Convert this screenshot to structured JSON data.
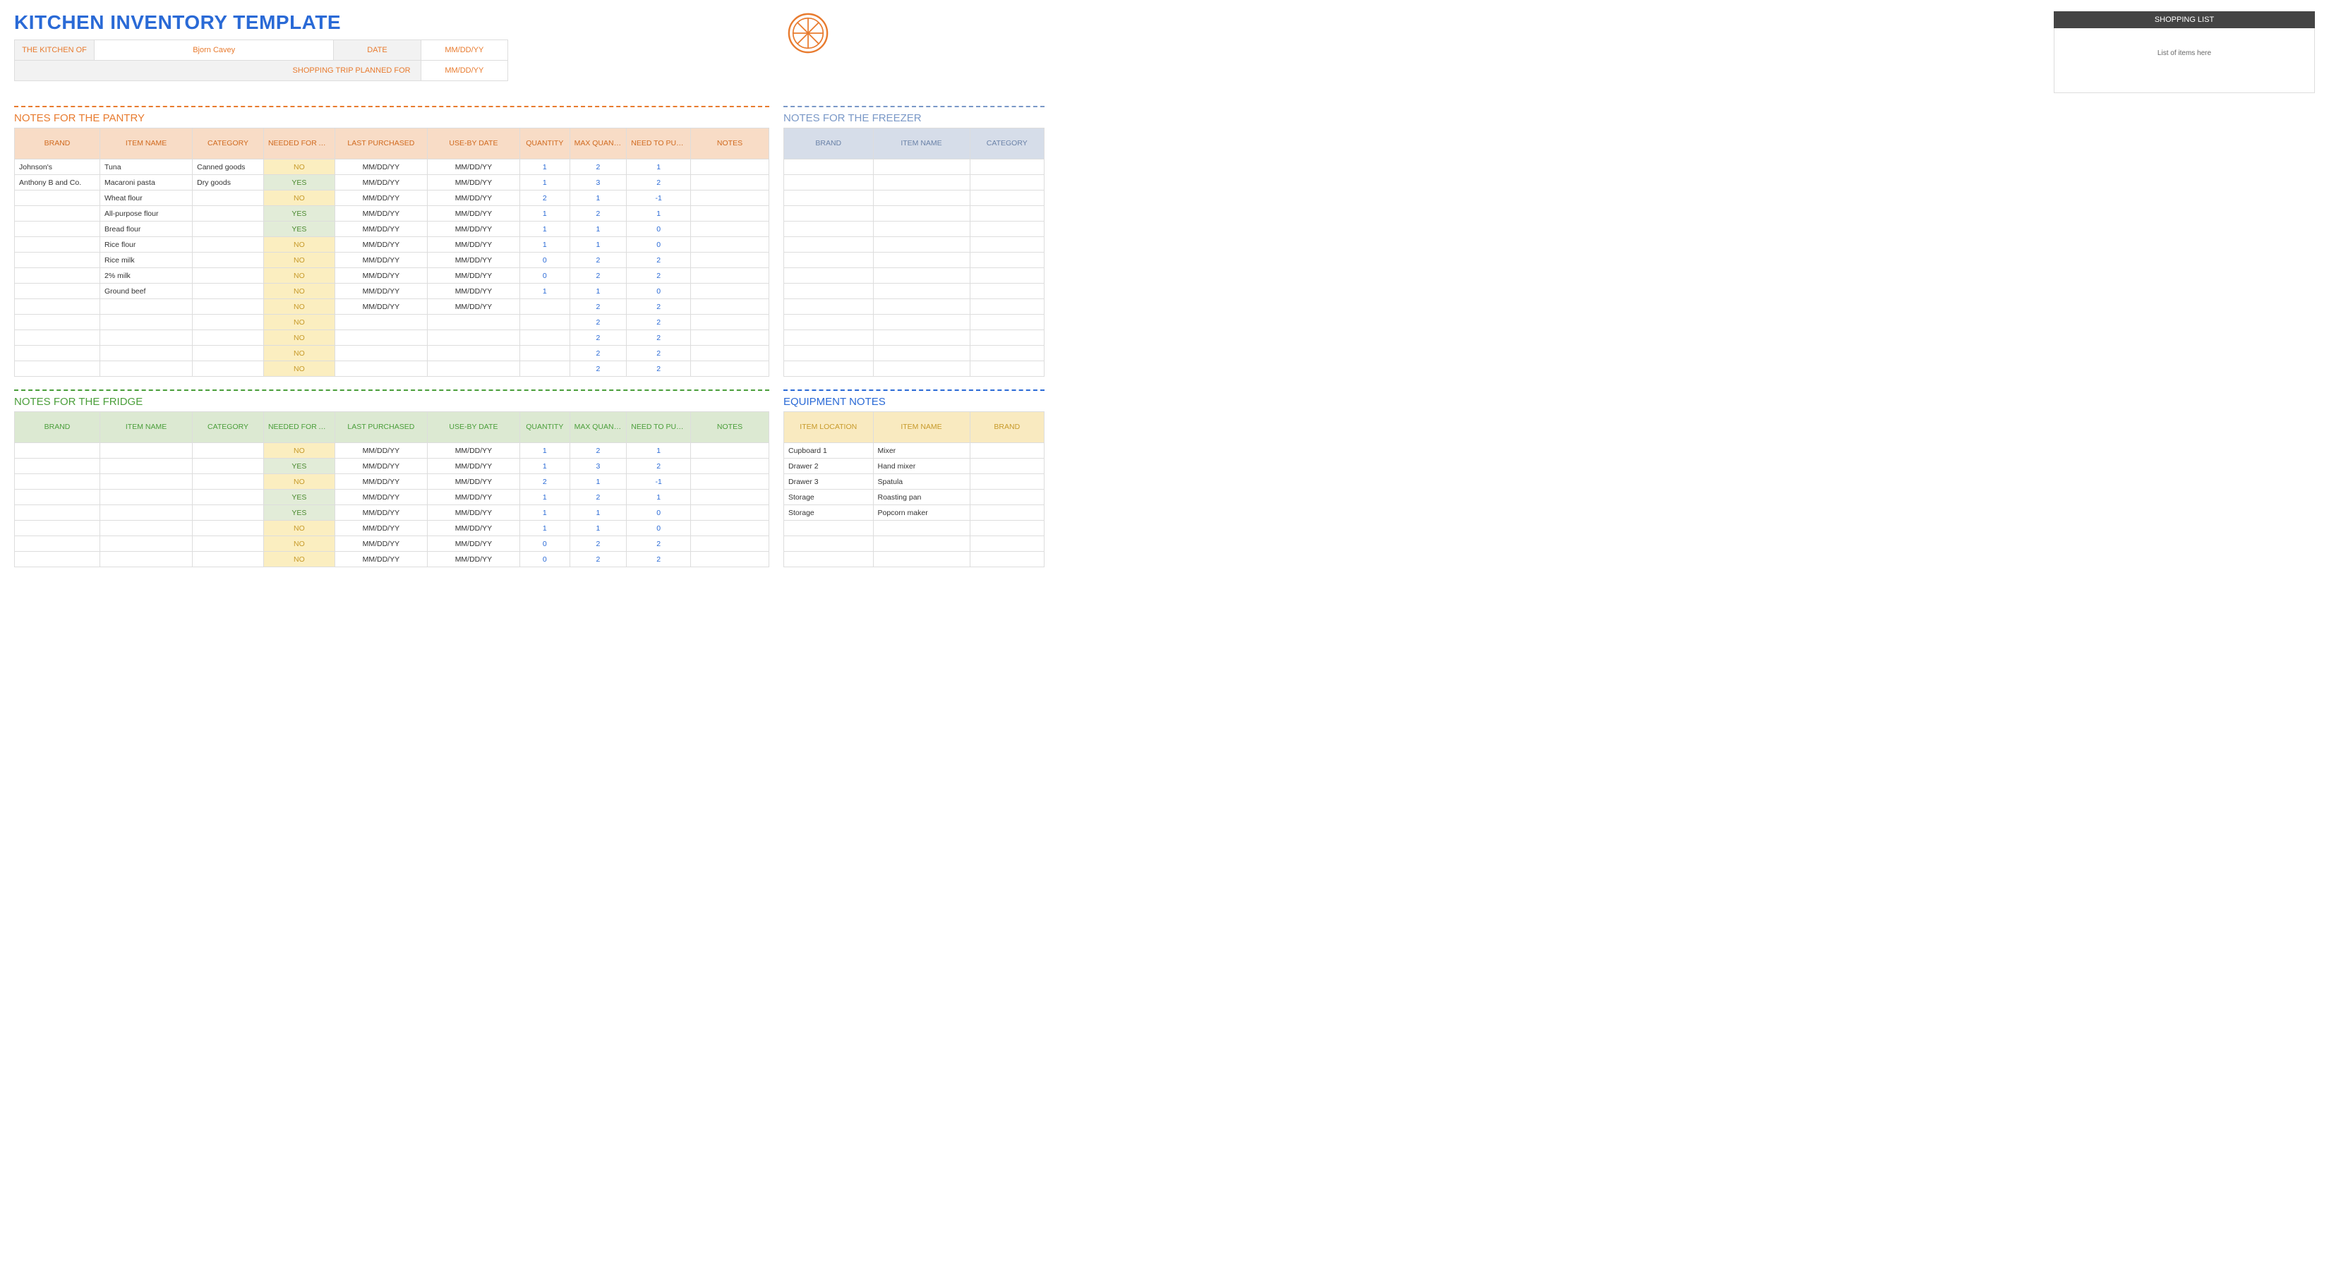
{
  "title": "KITCHEN INVENTORY TEMPLATE",
  "meta": {
    "kitchen_of_label": "THE KITCHEN OF",
    "kitchen_of_value": "Bjorn Cavey",
    "date_label": "DATE",
    "date_value": "MM/DD/YY",
    "trip_label": "SHOPPING TRIP PLANNED FOR",
    "trip_value": "MM/DD/YY"
  },
  "shopping": {
    "header": "SHOPPING LIST",
    "body": "List of items here"
  },
  "flags": {
    "yes": "YES",
    "no": "NO"
  },
  "columns": {
    "brand": "BRAND",
    "item": "ITEM NAME",
    "category": "CATEGORY",
    "needed": "NEEDED FOR A SPECIFIC RECIPE?",
    "last": "LAST PURCHASED",
    "useby": "USE-BY DATE",
    "qty": "QUANTITY",
    "maxqty": "MAX QUANTITY",
    "need": "NEED TO PURCHASE",
    "notes": "NOTES",
    "loc": "ITEM LOCATION"
  },
  "pantry": {
    "title": "NOTES FOR THE PANTRY",
    "rows": [
      {
        "brand": "Johnson's",
        "item": "Tuna",
        "cat": "Canned goods",
        "needed": "NO",
        "last": "MM/DD/YY",
        "use": "MM/DD/YY",
        "qty": "1",
        "max": "2",
        "need": "1"
      },
      {
        "brand": "Anthony B and Co.",
        "item": "Macaroni pasta",
        "cat": "Dry goods",
        "needed": "YES",
        "last": "MM/DD/YY",
        "use": "MM/DD/YY",
        "qty": "1",
        "max": "3",
        "need": "2"
      },
      {
        "brand": "",
        "item": "Wheat flour",
        "cat": "",
        "needed": "NO",
        "last": "MM/DD/YY",
        "use": "MM/DD/YY",
        "qty": "2",
        "max": "1",
        "need": "-1"
      },
      {
        "brand": "",
        "item": "All-purpose flour",
        "cat": "",
        "needed": "YES",
        "last": "MM/DD/YY",
        "use": "MM/DD/YY",
        "qty": "1",
        "max": "2",
        "need": "1"
      },
      {
        "brand": "",
        "item": "Bread flour",
        "cat": "",
        "needed": "YES",
        "last": "MM/DD/YY",
        "use": "MM/DD/YY",
        "qty": "1",
        "max": "1",
        "need": "0"
      },
      {
        "brand": "",
        "item": "Rice flour",
        "cat": "",
        "needed": "NO",
        "last": "MM/DD/YY",
        "use": "MM/DD/YY",
        "qty": "1",
        "max": "1",
        "need": "0"
      },
      {
        "brand": "",
        "item": "Rice milk",
        "cat": "",
        "needed": "NO",
        "last": "MM/DD/YY",
        "use": "MM/DD/YY",
        "qty": "0",
        "max": "2",
        "need": "2"
      },
      {
        "brand": "",
        "item": "2% milk",
        "cat": "",
        "needed": "NO",
        "last": "MM/DD/YY",
        "use": "MM/DD/YY",
        "qty": "0",
        "max": "2",
        "need": "2"
      },
      {
        "brand": "",
        "item": "Ground beef",
        "cat": "",
        "needed": "NO",
        "last": "MM/DD/YY",
        "use": "MM/DD/YY",
        "qty": "1",
        "max": "1",
        "need": "0"
      },
      {
        "brand": "",
        "item": "",
        "cat": "",
        "needed": "NO",
        "last": "MM/DD/YY",
        "use": "MM/DD/YY",
        "qty": "",
        "max": "2",
        "need": "2"
      },
      {
        "brand": "",
        "item": "",
        "cat": "",
        "needed": "NO",
        "last": "",
        "use": "",
        "qty": "",
        "max": "2",
        "need": "2"
      },
      {
        "brand": "",
        "item": "",
        "cat": "",
        "needed": "NO",
        "last": "",
        "use": "",
        "qty": "",
        "max": "2",
        "need": "2"
      },
      {
        "brand": "",
        "item": "",
        "cat": "",
        "needed": "NO",
        "last": "",
        "use": "",
        "qty": "",
        "max": "2",
        "need": "2"
      },
      {
        "brand": "",
        "item": "",
        "cat": "",
        "needed": "NO",
        "last": "",
        "use": "",
        "qty": "",
        "max": "2",
        "need": "2"
      }
    ]
  },
  "fridge": {
    "title": "NOTES FOR THE FRIDGE",
    "rows": [
      {
        "needed": "NO",
        "last": "MM/DD/YY",
        "use": "MM/DD/YY",
        "qty": "1",
        "max": "2",
        "need": "1"
      },
      {
        "needed": "YES",
        "last": "MM/DD/YY",
        "use": "MM/DD/YY",
        "qty": "1",
        "max": "3",
        "need": "2"
      },
      {
        "needed": "NO",
        "last": "MM/DD/YY",
        "use": "MM/DD/YY",
        "qty": "2",
        "max": "1",
        "need": "-1"
      },
      {
        "needed": "YES",
        "last": "MM/DD/YY",
        "use": "MM/DD/YY",
        "qty": "1",
        "max": "2",
        "need": "1"
      },
      {
        "needed": "YES",
        "last": "MM/DD/YY",
        "use": "MM/DD/YY",
        "qty": "1",
        "max": "1",
        "need": "0"
      },
      {
        "needed": "NO",
        "last": "MM/DD/YY",
        "use": "MM/DD/YY",
        "qty": "1",
        "max": "1",
        "need": "0"
      },
      {
        "needed": "NO",
        "last": "MM/DD/YY",
        "use": "MM/DD/YY",
        "qty": "0",
        "max": "2",
        "need": "2"
      },
      {
        "needed": "NO",
        "last": "MM/DD/YY",
        "use": "MM/DD/YY",
        "qty": "0",
        "max": "2",
        "need": "2"
      }
    ]
  },
  "freezer": {
    "title": "NOTES FOR THE FREEZER",
    "empty_rows": 14
  },
  "equipment": {
    "title": "EQUIPMENT NOTES",
    "rows": [
      {
        "loc": "Cupboard 1",
        "item": "Mixer",
        "brand": ""
      },
      {
        "loc": "Drawer 2",
        "item": "Hand mixer",
        "brand": ""
      },
      {
        "loc": "Drawer 3",
        "item": "Spatula",
        "brand": ""
      },
      {
        "loc": "Storage",
        "item": "Roasting pan",
        "brand": ""
      },
      {
        "loc": "Storage",
        "item": "Popcorn maker",
        "brand": ""
      },
      {
        "loc": "",
        "item": "",
        "brand": ""
      },
      {
        "loc": "",
        "item": "",
        "brand": ""
      },
      {
        "loc": "",
        "item": "",
        "brand": ""
      }
    ]
  },
  "colors": {
    "title_blue": "#2a6ad6",
    "orange": "#e87b2f",
    "green": "#4a9e3a",
    "steel_blue": "#7a98c7",
    "deep_blue": "#2a6ad6",
    "hdr_orange_bg": "#f8dcc6",
    "hdr_green_bg": "#dce9d2",
    "hdr_blue_bg": "#d6dde9",
    "hdr_yellow_bg": "#f9eac0",
    "flag_yes_bg": "#e2ecd8",
    "flag_no_bg": "#fbeec0"
  },
  "col_widths": {
    "main": [
      120,
      130,
      100,
      100,
      130,
      130,
      70,
      80,
      90,
      110
    ],
    "side3": [
      120,
      130,
      100
    ],
    "equip": [
      120,
      130,
      100
    ]
  }
}
